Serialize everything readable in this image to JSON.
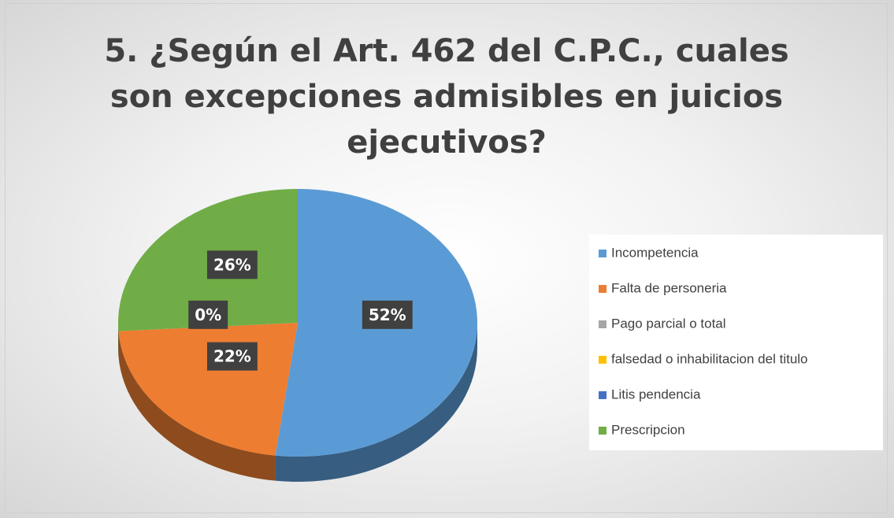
{
  "chart_data": {
    "type": "pie3d",
    "title": "5. ¿Según el Art. 462 del C.P.C., cuales son excepciones admisibles en juicios ejecutivos?",
    "categories": [
      "Incompetencia",
      "Falta de personeria",
      "Pago parcial o total",
      "falsedad o inhabilitacion del titulo",
      "Litis pendencia",
      "Prescripcion"
    ],
    "values": [
      52,
      22,
      0,
      0,
      0,
      26
    ],
    "value_labels": [
      "52%",
      "22%",
      "0%",
      null,
      null,
      "26%"
    ],
    "colors": [
      "#5b9bd5",
      "#ed7d31",
      "#a5a5a5",
      "#ffc000",
      "#4472c4",
      "#70ad47"
    ],
    "legend": "right"
  }
}
